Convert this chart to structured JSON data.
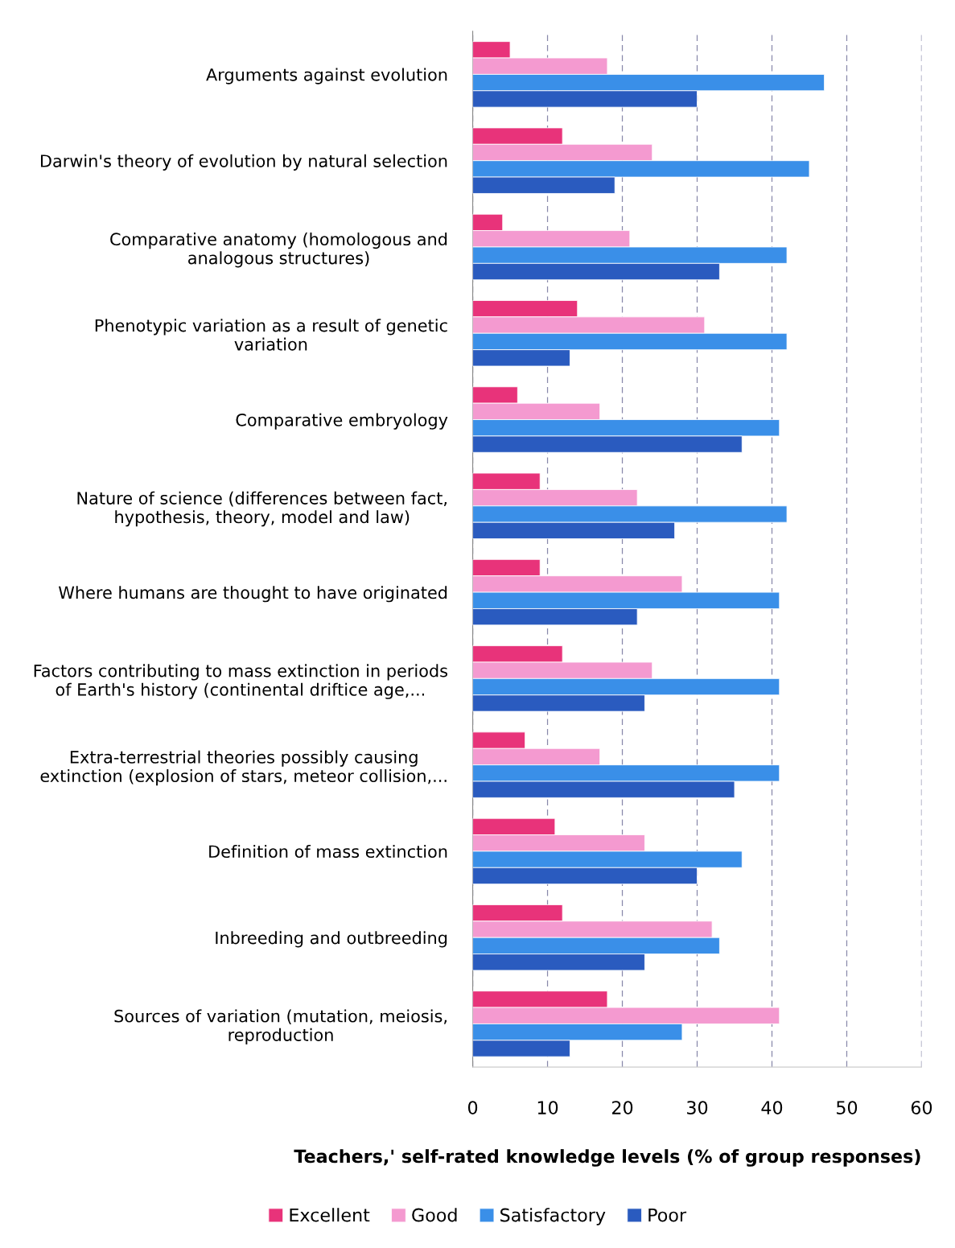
{
  "chart_data": {
    "type": "bar",
    "orientation": "horizontal",
    "categories": [
      "Arguments against evolution",
      "Darwin's theory of evolution by natural selection",
      "Comparative anatomy (homologous and\nanalogous structures)",
      "Phenotypic variation as a result of genetic\nvariation",
      "Comparative embryology",
      "Nature of science (differences between fact,\nhypothesis, theory, model and law)",
      "Where humans are thought to have originated",
      "Factors contributing to mass extinction in periods\nof Earth's history (continental driftice age,...",
      "Extra-terrestrial theories possibly causing\nextinction (explosion of stars, meteor collision,...",
      "Definition of mass extinction",
      "Inbreeding and outbreeding",
      "Sources of variation (mutation, meiosis,\nreproduction"
    ],
    "series": [
      {
        "name": "Excellent",
        "color": "#e8337a",
        "values": [
          5,
          12,
          4,
          14,
          6,
          9,
          9,
          12,
          7,
          11,
          12,
          18
        ]
      },
      {
        "name": "Good",
        "color": "#f49ad0",
        "values": [
          18,
          24,
          21,
          31,
          17,
          22,
          28,
          24,
          17,
          23,
          32,
          41
        ]
      },
      {
        "name": "Satisfactory",
        "color": "#3a8fe8",
        "values": [
          47,
          45,
          42,
          42,
          41,
          42,
          41,
          41,
          41,
          36,
          33,
          28
        ]
      },
      {
        "name": "Poor",
        "color": "#2a5bbf",
        "values": [
          30,
          19,
          33,
          13,
          36,
          27,
          22,
          23,
          35,
          30,
          23,
          13
        ]
      }
    ],
    "xlabel": "Teachers,' self-rated knowledge levels (% of group responses)",
    "xlim": [
      0,
      60
    ],
    "xticks": [
      0,
      10,
      20,
      30,
      40,
      50,
      60
    ],
    "grid": "x",
    "legend": "bottom"
  }
}
